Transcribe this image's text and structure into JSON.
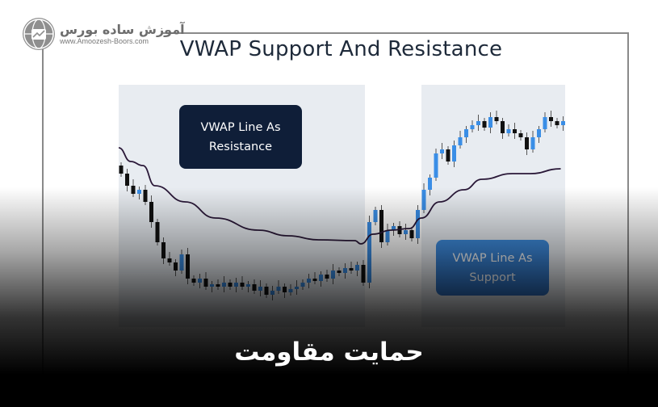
{
  "logo": {
    "name_fa": "آموزش ساده بورس",
    "url": "www.Amoozesh-Boors.com"
  },
  "title": "VWAP Support And Resistance",
  "labels": {
    "resistance": [
      "VWAP Line As",
      "Resistance"
    ],
    "support": [
      "VWAP Line As",
      "Support"
    ]
  },
  "caption": "حمایت مقاومت",
  "colors": {
    "bullish": "#3a8ee6",
    "bearish": "#111111",
    "vwap": "#2a1838",
    "resistance_box": "#0f1e38",
    "support_box": "#3a86d9"
  },
  "chart_data": {
    "type": "candlestick",
    "title": "VWAP Support And Resistance",
    "xlabel": "",
    "ylabel": "",
    "grid": false,
    "closes": [
      185,
      170,
      160,
      165,
      150,
      125,
      100,
      80,
      75,
      65,
      85,
      55,
      50,
      55,
      45,
      48,
      45,
      50,
      45,
      50,
      45,
      48,
      40,
      45,
      35,
      40,
      45,
      38,
      42,
      45,
      50,
      55,
      52,
      60,
      55,
      65,
      62,
      68,
      65,
      72,
      50,
      125,
      140,
      100,
      115,
      120,
      110,
      115,
      105,
      140,
      165,
      180,
      210,
      215,
      200,
      220,
      230,
      240,
      245,
      250,
      242,
      255,
      250,
      235,
      240,
      235,
      230,
      215,
      230,
      240,
      255,
      250,
      245,
      250
    ],
    "open_first": 195,
    "vwap": [
      [
        0,
        217
      ],
      [
        2,
        200
      ],
      [
        4,
        195
      ],
      [
        6,
        170
      ],
      [
        11,
        150
      ],
      [
        16,
        130
      ],
      [
        23,
        115
      ],
      [
        28,
        108
      ],
      [
        33,
        103
      ],
      [
        39,
        102
      ],
      [
        40,
        98
      ],
      [
        42,
        110
      ],
      [
        45,
        115
      ],
      [
        48,
        117
      ],
      [
        50,
        130
      ],
      [
        53,
        150
      ],
      [
        57,
        165
      ],
      [
        60,
        178
      ],
      [
        65,
        185
      ],
      [
        68,
        185
      ],
      [
        73,
        191
      ]
    ],
    "annotations": [
      "VWAP Line As Resistance",
      "VWAP Line As Support"
    ]
  }
}
